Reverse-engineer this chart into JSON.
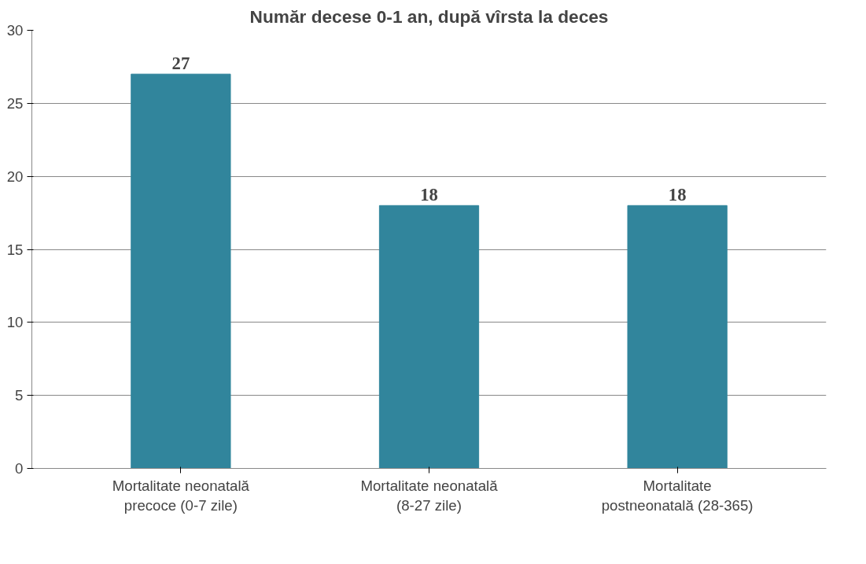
{
  "chart_data": {
    "type": "bar",
    "title": "Număr decese 0-1 an, după vîrsta la deces",
    "categories": [
      "Mortalitate neonatală precoce (0-7 zile)",
      "Mortalitate neonatală (8-27 zile)",
      "Mortalitate postneonatală (28-365)"
    ],
    "values": [
      27,
      18,
      18
    ],
    "color": "#31859c",
    "ylim": [
      0,
      30
    ],
    "yticks": [
      0,
      5,
      10,
      15,
      20,
      25,
      30
    ],
    "grid": "y",
    "data_labels": true
  }
}
